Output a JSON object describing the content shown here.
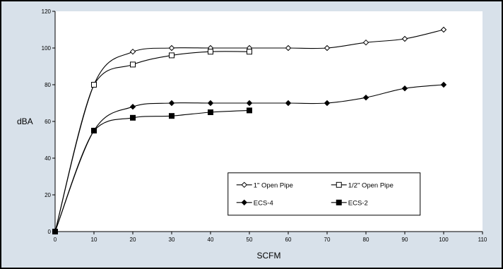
{
  "chart_data": {
    "type": "line",
    "title": "",
    "xlabel": "SCFM",
    "ylabel": "dBA",
    "xlim": [
      0,
      110
    ],
    "ylim": [
      0,
      120
    ],
    "xticks": [
      0,
      10,
      20,
      30,
      40,
      50,
      60,
      70,
      80,
      90,
      100,
      110
    ],
    "yticks": [
      0,
      20,
      40,
      60,
      80,
      100,
      120
    ],
    "grid": false,
    "legend_placement": "bottom-right",
    "background": "#d8e1ea",
    "plot_background": "#ffffff",
    "line_color": "#000000",
    "series": [
      {
        "name": "1\" Open Pipe",
        "marker": "diamond-open",
        "x": [
          0,
          10,
          20,
          30,
          40,
          50,
          60,
          70,
          80,
          90,
          100
        ],
        "values": [
          0,
          80,
          98,
          100,
          100,
          100,
          100,
          100,
          103,
          105,
          110
        ]
      },
      {
        "name": "1/2\" Open Pipe",
        "marker": "square-open",
        "x": [
          0,
          10,
          20,
          30,
          40,
          50
        ],
        "values": [
          0,
          80,
          91,
          96,
          98,
          98
        ]
      },
      {
        "name": "ECS-4",
        "marker": "diamond-filled",
        "x": [
          0,
          10,
          20,
          30,
          40,
          50,
          60,
          70,
          80,
          90,
          100
        ],
        "values": [
          0,
          55,
          68,
          70,
          70,
          70,
          70,
          70,
          73,
          78,
          80
        ]
      },
      {
        "name": "ECS-2",
        "marker": "square-filled",
        "x": [
          0,
          10,
          20,
          30,
          40,
          50
        ],
        "values": [
          0,
          55,
          62,
          63,
          65,
          66
        ]
      }
    ]
  }
}
